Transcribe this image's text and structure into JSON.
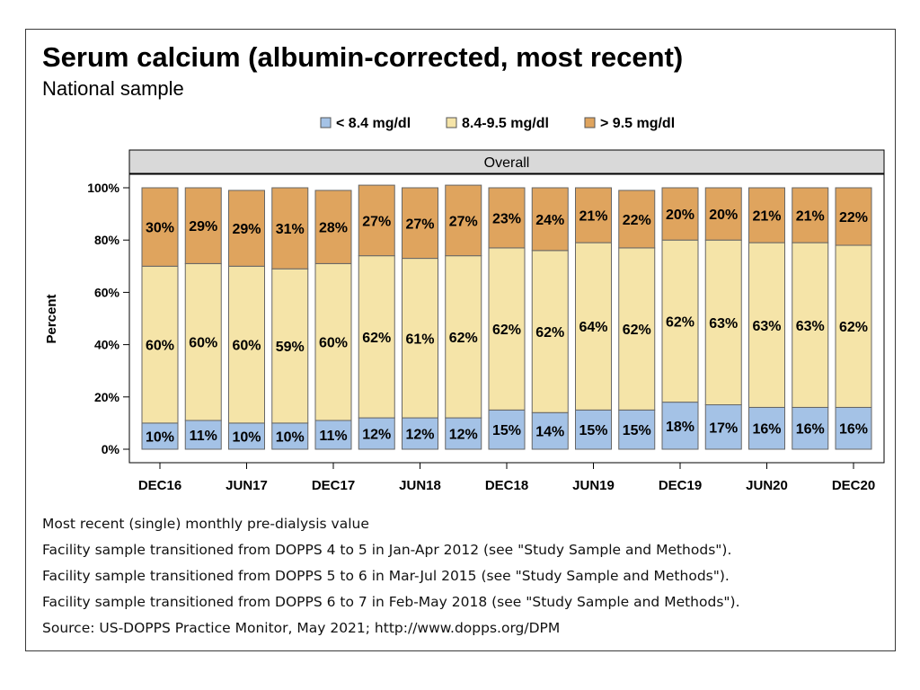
{
  "header": {
    "title": "Serum calcium (albumin-corrected, most recent)",
    "subtitle": "National sample"
  },
  "chart_data": {
    "type": "bar",
    "stacked": true,
    "panel_label": "Overall",
    "ylabel": "Percent",
    "ylim": [
      0,
      100
    ],
    "y_ticks": [
      "0%",
      "20%",
      "40%",
      "60%",
      "80%",
      "100%"
    ],
    "x_tick_labels": [
      "DEC16",
      "JUN17",
      "DEC17",
      "JUN18",
      "DEC18",
      "JUN19",
      "DEC19",
      "JUN20",
      "DEC20"
    ],
    "legend_position": "top",
    "series": [
      {
        "name": "< 8.4 mg/dl",
        "color": "#a4c2e6",
        "values": [
          10,
          11,
          10,
          10,
          11,
          12,
          12,
          12,
          15,
          14,
          15,
          15,
          18,
          17,
          16,
          16,
          16
        ]
      },
      {
        "name": "8.4-9.5 mg/dl",
        "color": "#f5e4a8",
        "values": [
          60,
          60,
          60,
          59,
          60,
          62,
          61,
          62,
          62,
          62,
          64,
          62,
          62,
          63,
          63,
          63,
          62
        ]
      },
      {
        "name": "> 9.5 mg/dl",
        "color": "#dfa45e",
        "values": [
          30,
          29,
          29,
          31,
          28,
          27,
          27,
          27,
          23,
          24,
          21,
          22,
          20,
          20,
          21,
          21,
          22
        ]
      }
    ]
  },
  "footnotes": [
    "Most recent (single) monthly pre-dialysis value",
    "Facility sample transitioned from DOPPS 4 to 5 in Jan-Apr 2012 (see \"Study Sample and Methods\").",
    "Facility sample transitioned from DOPPS 5 to 6 in Mar-Jul 2015 (see \"Study Sample and Methods\").",
    "Facility sample transitioned from DOPPS 6 to 7 in Feb-May 2018 (see \"Study Sample and Methods\").",
    "Source: US-DOPPS Practice Monitor, May 2021; http://www.dopps.org/DPM"
  ]
}
